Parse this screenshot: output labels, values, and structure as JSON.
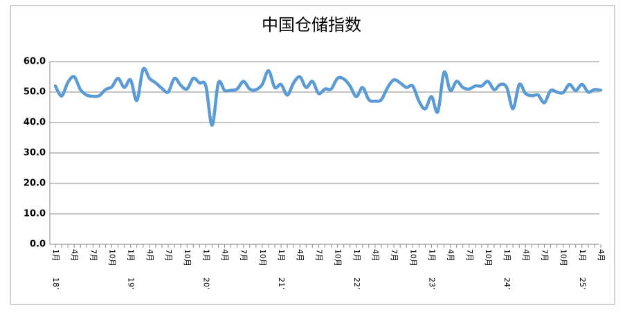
{
  "chart_data": {
    "type": "line",
    "title": "中国仓储指数",
    "categories": [
      "1月",
      null,
      null,
      "4月",
      null,
      null,
      "7月",
      null,
      null,
      "10月",
      null,
      null,
      "1月",
      null,
      null,
      "4月",
      null,
      null,
      "7月",
      null,
      null,
      "10月",
      null,
      null,
      "1月",
      null,
      null,
      "4月",
      null,
      null,
      "7月",
      null,
      null,
      "10月",
      null,
      null,
      "1月",
      null,
      null,
      "4月",
      null,
      null,
      "7月",
      null,
      null,
      "10月",
      null,
      null,
      "1月",
      null,
      null,
      "4月",
      null,
      null,
      "7月",
      null,
      null,
      "10月",
      null,
      null,
      "1月",
      null,
      null,
      "4月",
      null,
      null,
      "7月",
      null,
      null,
      "10月",
      null,
      null,
      "1月",
      null,
      null,
      "4月",
      null,
      null,
      "7月",
      null,
      null,
      "10月",
      null,
      null,
      "1月",
      null,
      null,
      "4月"
    ],
    "years": [
      "18’",
      null,
      null,
      null,
      null,
      null,
      null,
      null,
      null,
      null,
      null,
      null,
      "19’",
      null,
      null,
      null,
      null,
      null,
      null,
      null,
      null,
      null,
      null,
      null,
      "20’",
      null,
      null,
      null,
      null,
      null,
      null,
      null,
      null,
      null,
      null,
      null,
      "21’",
      null,
      null,
      null,
      null,
      null,
      null,
      null,
      null,
      null,
      null,
      null,
      "22’",
      null,
      null,
      null,
      null,
      null,
      null,
      null,
      null,
      null,
      null,
      null,
      "23’",
      null,
      null,
      null,
      null,
      null,
      null,
      null,
      null,
      null,
      null,
      null,
      "24’",
      null,
      null,
      null,
      null,
      null,
      null,
      null,
      null,
      null,
      null,
      null,
      "25’",
      null,
      null,
      null
    ],
    "series": [
      {
        "name": "中国仓储指数",
        "color": "#5b9bd5",
        "values": [
          52.0,
          48.7,
          53.2,
          55.0,
          50.8,
          49.0,
          48.6,
          48.8,
          50.8,
          51.7,
          54.5,
          51.5,
          54.0,
          47.2,
          57.5,
          54.5,
          53.0,
          51.2,
          50.0,
          54.5,
          52.2,
          51.0,
          54.5,
          53.0,
          52.0,
          39.1,
          53.0,
          50.5,
          50.6,
          51.0,
          53.5,
          51.0,
          50.8,
          52.5,
          57.0,
          51.5,
          52.5,
          49.0,
          53.0,
          55.0,
          51.5,
          53.5,
          49.5,
          51.0,
          51.0,
          54.5,
          54.3,
          52.0,
          48.5,
          51.5,
          47.5,
          47.0,
          47.5,
          51.5,
          54.0,
          53.0,
          51.5,
          52.0,
          47.0,
          44.5,
          48.5,
          43.5,
          56.5,
          50.5,
          53.5,
          51.5,
          51.0,
          52.0,
          52.0,
          53.5,
          50.8,
          52.5,
          51.5,
          44.5,
          52.5,
          49.5,
          48.8,
          49.0,
          46.5,
          50.5,
          50.0,
          49.8,
          52.5,
          50.5,
          52.5,
          50.0,
          50.8,
          50.6
        ]
      }
    ],
    "ylim": [
      0,
      60
    ],
    "yticks": [
      {
        "value": 0,
        "label": "0.0"
      },
      {
        "value": 10,
        "label": "10.0"
      },
      {
        "value": 20,
        "label": "20.0"
      },
      {
        "value": 30,
        "label": "30.0"
      },
      {
        "value": 40,
        "label": "40.0"
      },
      {
        "value": 50,
        "label": "50.0"
      },
      {
        "value": 60,
        "label": "60.0"
      }
    ],
    "grid": true
  }
}
